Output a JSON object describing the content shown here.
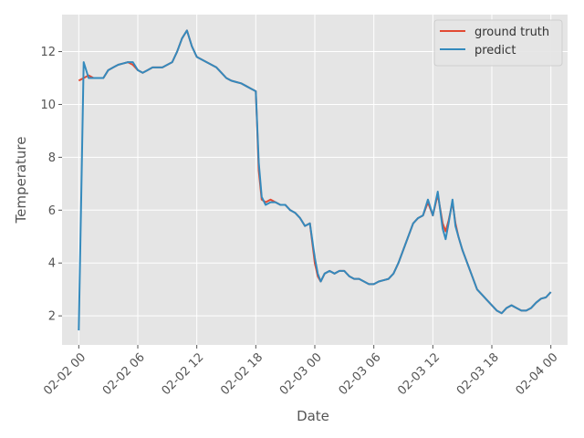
{
  "chart_data": {
    "type": "line",
    "title": "",
    "xlabel": "Date",
    "ylabel": "Temperature",
    "x_unit": "hours",
    "xlim": [
      -1.7,
      49.7
    ],
    "ylim": [
      0.9,
      13.4
    ],
    "grid": true,
    "legend_position": "top-right",
    "xticks": [
      {
        "value": 0,
        "label": "02-02 00"
      },
      {
        "value": 6,
        "label": "02-02 06"
      },
      {
        "value": 12,
        "label": "02-02 12"
      },
      {
        "value": 18,
        "label": "02-02 18"
      },
      {
        "value": 24,
        "label": "02-03 00"
      },
      {
        "value": 30,
        "label": "02-03 06"
      },
      {
        "value": 36,
        "label": "02-03 12"
      },
      {
        "value": 42,
        "label": "02-03 18"
      },
      {
        "value": 48,
        "label": "02-04 00"
      }
    ],
    "yticks": [
      {
        "value": 2,
        "label": "2"
      },
      {
        "value": 4,
        "label": "4"
      },
      {
        "value": 6,
        "label": "6"
      },
      {
        "value": 8,
        "label": "8"
      },
      {
        "value": 10,
        "label": "10"
      },
      {
        "value": 12,
        "label": "12"
      }
    ],
    "series": [
      {
        "name": "ground truth",
        "color": "#E24A33",
        "x": [
          0,
          0.5,
          1,
          1.5,
          2,
          2.5,
          3,
          3.5,
          4,
          4.5,
          5,
          5.5,
          6,
          6.5,
          7,
          7.5,
          8,
          8.5,
          9,
          9.5,
          10,
          10.5,
          11,
          11.5,
          12,
          12.5,
          13,
          13.5,
          14,
          14.5,
          15,
          15.5,
          16,
          16.5,
          17,
          17.5,
          18,
          18.3,
          18.6,
          19,
          19.5,
          20,
          20.5,
          21,
          21.5,
          22,
          22.5,
          23,
          23.5,
          24,
          24.3,
          24.6,
          25,
          25.5,
          26,
          26.5,
          27,
          27.5,
          28,
          28.5,
          29,
          29.5,
          30,
          30.5,
          31,
          31.5,
          32,
          32.5,
          33,
          33.5,
          34,
          34.5,
          35,
          35.5,
          36,
          36.5,
          37,
          37.3,
          37.6,
          38,
          38.3,
          38.6,
          39,
          39.5,
          40,
          40.5,
          41,
          41.5,
          42,
          42.5,
          43,
          43.5,
          44,
          44.5,
          45,
          45.5,
          46,
          46.5,
          47,
          47.5,
          48
        ],
        "y": [
          10.9,
          11.0,
          11.1,
          11.0,
          11.0,
          11.0,
          11.3,
          11.4,
          11.5,
          11.55,
          11.6,
          11.5,
          11.3,
          11.2,
          11.3,
          11.4,
          11.4,
          11.4,
          11.5,
          11.6,
          12.0,
          12.5,
          12.8,
          12.2,
          11.8,
          11.7,
          11.6,
          11.5,
          11.4,
          11.2,
          11.0,
          10.9,
          10.85,
          10.8,
          10.7,
          10.6,
          10.5,
          7.5,
          6.4,
          6.3,
          6.4,
          6.3,
          6.2,
          6.2,
          6.0,
          5.9,
          5.7,
          5.4,
          5.5,
          4.0,
          3.5,
          3.3,
          3.6,
          3.7,
          3.6,
          3.7,
          3.7,
          3.5,
          3.4,
          3.4,
          3.3,
          3.2,
          3.2,
          3.3,
          3.35,
          3.4,
          3.6,
          4.0,
          4.5,
          5.0,
          5.5,
          5.7,
          5.8,
          6.3,
          5.8,
          6.6,
          5.5,
          5.2,
          5.6,
          6.3,
          5.5,
          5.0,
          4.5,
          4.0,
          3.5,
          3.0,
          2.8,
          2.6,
          2.4,
          2.2,
          2.1,
          2.3,
          2.4,
          2.3,
          2.2,
          2.2,
          2.3,
          2.5,
          2.65,
          2.7,
          2.9
        ]
      },
      {
        "name": "predict",
        "color": "#348ABD",
        "x": [
          0,
          0.25,
          0.5,
          1,
          1.5,
          2,
          2.5,
          3,
          3.5,
          4,
          4.5,
          5,
          5.5,
          6,
          6.5,
          7,
          7.5,
          8,
          8.5,
          9,
          9.5,
          10,
          10.5,
          11,
          11.5,
          12,
          12.5,
          13,
          13.5,
          14,
          14.5,
          15,
          15.5,
          16,
          16.5,
          17,
          17.5,
          18,
          18.3,
          18.6,
          19,
          19.5,
          20,
          20.5,
          21,
          21.5,
          22,
          22.5,
          23,
          23.5,
          24,
          24.3,
          24.6,
          25,
          25.5,
          26,
          26.5,
          27,
          27.5,
          28,
          28.5,
          29,
          29.5,
          30,
          30.5,
          31,
          31.5,
          32,
          32.5,
          33,
          33.5,
          34,
          34.5,
          35,
          35.5,
          36,
          36.5,
          37,
          37.3,
          37.6,
          38,
          38.3,
          38.6,
          39,
          39.5,
          40,
          40.5,
          41,
          41.5,
          42,
          42.5,
          43,
          43.5,
          44,
          44.5,
          45,
          45.5,
          46,
          46.5,
          47,
          47.5,
          48
        ],
        "y": [
          1.45,
          6.5,
          11.6,
          11.0,
          11.0,
          11.0,
          11.0,
          11.3,
          11.4,
          11.5,
          11.55,
          11.6,
          11.6,
          11.3,
          11.2,
          11.3,
          11.4,
          11.4,
          11.4,
          11.5,
          11.6,
          12.0,
          12.5,
          12.8,
          12.2,
          11.8,
          11.7,
          11.6,
          11.5,
          11.4,
          11.2,
          11.0,
          10.9,
          10.85,
          10.8,
          10.7,
          10.6,
          10.5,
          7.8,
          6.5,
          6.2,
          6.3,
          6.3,
          6.2,
          6.2,
          6.0,
          5.9,
          5.7,
          5.4,
          5.5,
          4.2,
          3.6,
          3.3,
          3.6,
          3.7,
          3.6,
          3.7,
          3.7,
          3.5,
          3.4,
          3.4,
          3.3,
          3.2,
          3.2,
          3.3,
          3.35,
          3.4,
          3.6,
          4.0,
          4.5,
          5.0,
          5.5,
          5.7,
          5.8,
          6.4,
          5.8,
          6.7,
          5.3,
          4.9,
          5.5,
          6.4,
          5.4,
          5.0,
          4.5,
          4.0,
          3.5,
          3.0,
          2.8,
          2.6,
          2.4,
          2.2,
          2.1,
          2.3,
          2.4,
          2.3,
          2.2,
          2.2,
          2.3,
          2.5,
          2.65,
          2.7,
          2.9
        ]
      }
    ]
  }
}
